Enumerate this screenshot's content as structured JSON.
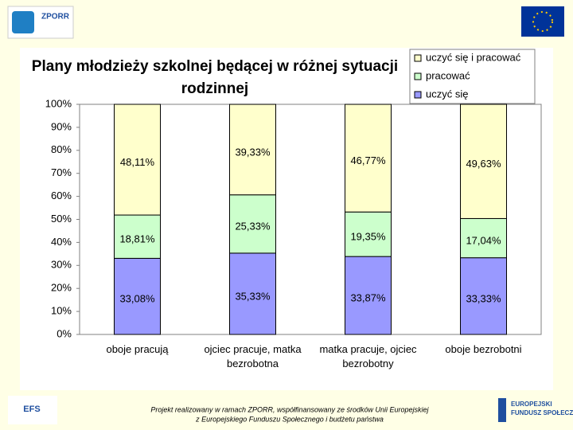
{
  "header": {
    "logo_left": "ZPORR"
  },
  "chart_data": {
    "type": "stacked_bar",
    "title": "Plany młodzieży szkolnej będącej w różnej sytuacji rodzinnej",
    "categories": [
      "oboje pracują",
      "ojciec pracuje, matka bezrobotna",
      "matka pracuje, ojciec bezrobotny",
      "oboje bezrobotni"
    ],
    "series": [
      {
        "name": "uczyć się",
        "color": "#9999ff",
        "values": [
          33.08,
          35.33,
          33.87,
          33.33
        ],
        "value_labels": [
          "33,08%",
          "35,33%",
          "33,87%",
          "33,33%"
        ]
      },
      {
        "name": "pracować",
        "color": "#ccffcc",
        "values": [
          18.81,
          25.33,
          19.35,
          17.04
        ],
        "value_labels": [
          "18,81%",
          "25,33%",
          "19,35%",
          "17,04%"
        ]
      },
      {
        "name": "uczyć się i pracować",
        "color": "#ffffcc",
        "values": [
          48.11,
          39.33,
          46.77,
          49.63
        ],
        "value_labels": [
          "48,11%",
          "39,33%",
          "46,77%",
          "49,63%"
        ]
      }
    ],
    "ylim": [
      0,
      100
    ],
    "yticks": [
      {
        "value": 0,
        "label": "0%"
      },
      {
        "value": 10,
        "label": "10%"
      },
      {
        "value": 20,
        "label": "20%"
      },
      {
        "value": 30,
        "label": "30%"
      },
      {
        "value": 40,
        "label": "40%"
      },
      {
        "value": 50,
        "label": "50%"
      },
      {
        "value": 60,
        "label": "60%"
      },
      {
        "value": 70,
        "label": "70%"
      },
      {
        "value": 80,
        "label": "80%"
      },
      {
        "value": 90,
        "label": "90%"
      },
      {
        "value": 100,
        "label": "100%"
      }
    ],
    "legend": "top-right"
  },
  "footer": {
    "text_lines": [
      "Projekt realizowany w ramach ZPORR, współfinansowany ze środków Unii Europejskiej",
      "z Europejskiego Funduszu Społecznego i budżetu państwa"
    ],
    "logo_left": "EFS",
    "logo_right_lines": [
      "EUROPEJSKI",
      "FUNDUSZ SPOŁECZNY"
    ]
  }
}
